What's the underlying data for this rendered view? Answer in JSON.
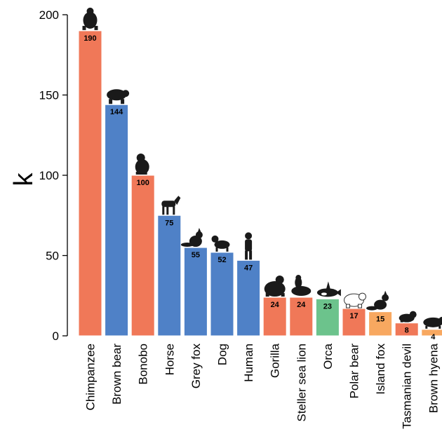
{
  "chart_data": {
    "type": "bar",
    "title": "",
    "xlabel": "",
    "ylabel": "k",
    "ylim": [
      0,
      200
    ],
    "yticks": [
      0,
      50,
      100,
      150,
      200
    ],
    "grid": false,
    "categories": [
      "Chimpanzee",
      "Brown bear",
      "Bonobo",
      "Horse",
      "Grey fox",
      "Dog",
      "Human",
      "Gorilla",
      "Steller sea lion",
      "Orca",
      "Polar bear",
      "Island fox",
      "Tasmanian devil",
      "Brown hyena"
    ],
    "values": [
      190,
      144,
      100,
      75,
      55,
      52,
      47,
      24,
      24,
      23,
      17,
      15,
      8,
      4
    ],
    "value_labels": [
      "190",
      "144",
      "100",
      "75",
      "55",
      "52",
      "47",
      "24",
      "24",
      "23",
      "17",
      "15",
      "8",
      "4"
    ],
    "bar_colors": [
      "#f07858",
      "#4f81c7",
      "#f07858",
      "#4f81c7",
      "#4f81c7",
      "#4f81c7",
      "#4f81c7",
      "#f07858",
      "#f07858",
      "#6cc38c",
      "#f07858",
      "#f8a860",
      "#f07858",
      "#f8a860"
    ],
    "icons": [
      "chimpanzee-icon",
      "brown-bear-icon",
      "bonobo-icon",
      "horse-icon",
      "grey-fox-icon",
      "dog-icon",
      "human-icon",
      "gorilla-icon",
      "sea-lion-icon",
      "orca-icon",
      "polar-bear-icon",
      "island-fox-icon",
      "tasmanian-devil-icon",
      "hyena-icon"
    ]
  }
}
